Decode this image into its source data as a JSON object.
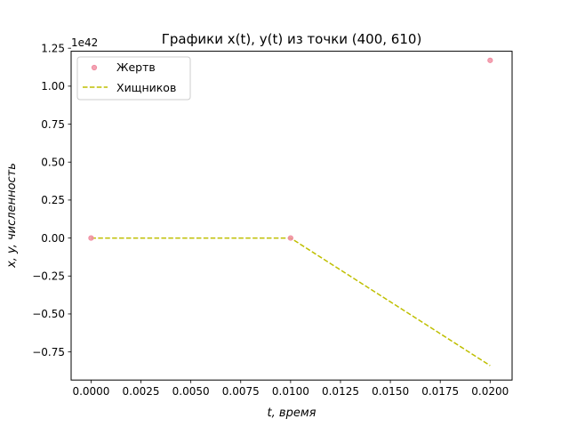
{
  "chart_data": {
    "type": "scatter",
    "title": "Графики x(t), y(t) из точки (400, 610)",
    "xlabel": "t, время",
    "ylabel": "x, y, численность",
    "y_offset_text": "1e42",
    "y_scale_exponent": 42,
    "xlim": [
      -0.001,
      0.0211
    ],
    "ylim": [
      -0.935,
      1.23
    ],
    "x_ticks": [
      "0.0000",
      "0.0025",
      "0.0050",
      "0.0075",
      "0.0100",
      "0.0125",
      "0.0150",
      "0.0175",
      "0.0200"
    ],
    "y_ticks": [
      "−0.75",
      "−0.50",
      "−0.25",
      "0.00",
      "0.25",
      "0.50",
      "0.75",
      "1.00",
      "1.25"
    ],
    "grid": false,
    "legend_position": "upper-left",
    "series": [
      {
        "name": "Жертв",
        "style": "markers",
        "color": "#f08ca0",
        "x": [
          0.0,
          0.01,
          0.02
        ],
        "y": [
          0.0,
          0.0,
          1.17
        ]
      },
      {
        "name": "Хищников",
        "style": "dashed-line",
        "color": "#bfbf00",
        "x": [
          0.0,
          0.01,
          0.02
        ],
        "y": [
          0.0,
          0.0,
          -0.84
        ]
      }
    ]
  }
}
